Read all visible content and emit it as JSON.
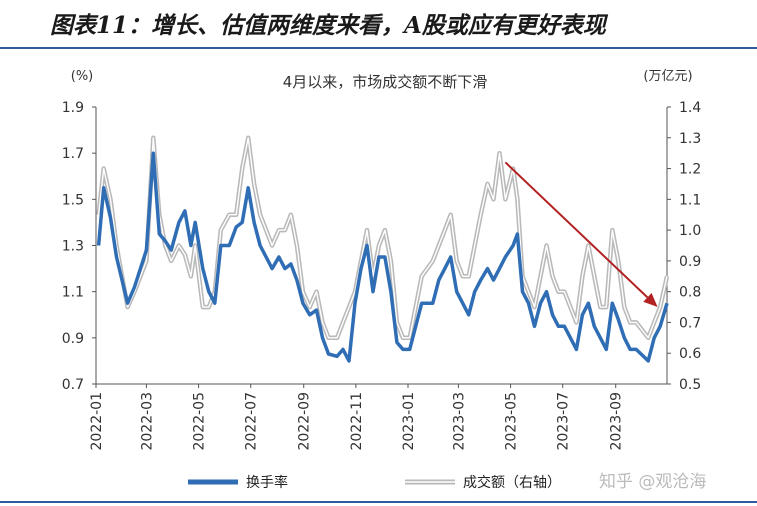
{
  "header": {
    "title": "图表11：增长、估值两维度来看，A股或应有更好表现"
  },
  "watermark": "知乎 @观沧海",
  "colors": {
    "turnover": "#2f6db5",
    "volume": "#b9b9b9",
    "arrow": "#b22222",
    "rule": "#2e5c9a"
  },
  "chart_data": {
    "type": "line",
    "annotation": "4月以来，市场成交额不断下滑",
    "left_unit": "(%)",
    "right_unit": "(万亿元)",
    "left_ylim": [
      0.7,
      1.9
    ],
    "right_ylim": [
      0.5,
      1.4
    ],
    "left_ticks": [
      "0.7",
      "0.9",
      "1.1",
      "1.3",
      "1.5",
      "1.7",
      "1.9"
    ],
    "right_ticks": [
      "0.5",
      "0.6",
      "0.7",
      "0.8",
      "0.9",
      "1.0",
      "1.1",
      "1.2",
      "1.3",
      "1.4"
    ],
    "x_range": [
      "2022-01-01",
      "2023-10-31"
    ],
    "x_ticks": [
      "2022-01",
      "2022-03",
      "2022-05",
      "2022-07",
      "2022-09",
      "2022-11",
      "2023-01",
      "2023-03",
      "2023-05",
      "2023-07",
      "2023-09"
    ],
    "series": [
      {
        "name": "换手率",
        "axis": "left",
        "points": [
          [
            "2022-01-04",
            1.3
          ],
          [
            "2022-01-10",
            1.55
          ],
          [
            "2022-01-18",
            1.42
          ],
          [
            "2022-01-25",
            1.25
          ],
          [
            "2022-02-07",
            1.05
          ],
          [
            "2022-02-15",
            1.12
          ],
          [
            "2022-02-22",
            1.2
          ],
          [
            "2022-03-01",
            1.28
          ],
          [
            "2022-03-09",
            1.7
          ],
          [
            "2022-03-16",
            1.35
          ],
          [
            "2022-03-23",
            1.32
          ],
          [
            "2022-03-30",
            1.28
          ],
          [
            "2022-04-08",
            1.4
          ],
          [
            "2022-04-15",
            1.45
          ],
          [
            "2022-04-22",
            1.3
          ],
          [
            "2022-04-27",
            1.4
          ],
          [
            "2022-05-06",
            1.2
          ],
          [
            "2022-05-13",
            1.1
          ],
          [
            "2022-05-20",
            1.05
          ],
          [
            "2022-05-27",
            1.3
          ],
          [
            "2022-06-06",
            1.3
          ],
          [
            "2022-06-14",
            1.38
          ],
          [
            "2022-06-21",
            1.4
          ],
          [
            "2022-06-28",
            1.55
          ],
          [
            "2022-07-05",
            1.4
          ],
          [
            "2022-07-12",
            1.3
          ],
          [
            "2022-07-19",
            1.25
          ],
          [
            "2022-07-26",
            1.2
          ],
          [
            "2022-08-03",
            1.25
          ],
          [
            "2022-08-10",
            1.2
          ],
          [
            "2022-08-17",
            1.22
          ],
          [
            "2022-08-24",
            1.15
          ],
          [
            "2022-08-31",
            1.05
          ],
          [
            "2022-09-08",
            1.0
          ],
          [
            "2022-09-16",
            1.02
          ],
          [
            "2022-09-23",
            0.9
          ],
          [
            "2022-09-30",
            0.83
          ],
          [
            "2022-10-10",
            0.82
          ],
          [
            "2022-10-17",
            0.85
          ],
          [
            "2022-10-24",
            0.8
          ],
          [
            "2022-10-31",
            1.05
          ],
          [
            "2022-11-07",
            1.2
          ],
          [
            "2022-11-14",
            1.3
          ],
          [
            "2022-11-21",
            1.1
          ],
          [
            "2022-11-28",
            1.25
          ],
          [
            "2022-12-05",
            1.25
          ],
          [
            "2022-12-12",
            1.1
          ],
          [
            "2022-12-19",
            0.88
          ],
          [
            "2022-12-26",
            0.85
          ],
          [
            "2023-01-03",
            0.85
          ],
          [
            "2023-01-10",
            0.95
          ],
          [
            "2023-01-17",
            1.05
          ],
          [
            "2023-01-30",
            1.05
          ],
          [
            "2023-02-06",
            1.15
          ],
          [
            "2023-02-13",
            1.2
          ],
          [
            "2023-02-20",
            1.25
          ],
          [
            "2023-02-27",
            1.1
          ],
          [
            "2023-03-06",
            1.05
          ],
          [
            "2023-03-13",
            1.0
          ],
          [
            "2023-03-20",
            1.1
          ],
          [
            "2023-03-27",
            1.15
          ],
          [
            "2023-04-04",
            1.2
          ],
          [
            "2023-04-11",
            1.15
          ],
          [
            "2023-04-18",
            1.2
          ],
          [
            "2023-04-25",
            1.25
          ],
          [
            "2023-05-04",
            1.3
          ],
          [
            "2023-05-09",
            1.35
          ],
          [
            "2023-05-15",
            1.1
          ],
          [
            "2023-05-22",
            1.05
          ],
          [
            "2023-05-29",
            0.95
          ],
          [
            "2023-06-05",
            1.05
          ],
          [
            "2023-06-12",
            1.1
          ],
          [
            "2023-06-19",
            1.0
          ],
          [
            "2023-06-26",
            0.95
          ],
          [
            "2023-07-03",
            0.95
          ],
          [
            "2023-07-10",
            0.9
          ],
          [
            "2023-07-17",
            0.85
          ],
          [
            "2023-07-24",
            1.0
          ],
          [
            "2023-07-31",
            1.05
          ],
          [
            "2023-08-07",
            0.95
          ],
          [
            "2023-08-14",
            0.9
          ],
          [
            "2023-08-21",
            0.85
          ],
          [
            "2023-08-28",
            1.05
          ],
          [
            "2023-09-04",
            0.98
          ],
          [
            "2023-09-11",
            0.9
          ],
          [
            "2023-09-18",
            0.85
          ],
          [
            "2023-09-25",
            0.85
          ],
          [
            "2023-10-09",
            0.8
          ],
          [
            "2023-10-16",
            0.9
          ],
          [
            "2023-10-23",
            0.95
          ],
          [
            "2023-10-31",
            1.05
          ]
        ]
      },
      {
        "name": "成交额（右轴）",
        "axis": "right",
        "points": [
          [
            "2022-01-04",
            1.05
          ],
          [
            "2022-01-10",
            1.2
          ],
          [
            "2022-01-18",
            1.1
          ],
          [
            "2022-01-25",
            0.95
          ],
          [
            "2022-02-07",
            0.75
          ],
          [
            "2022-02-15",
            0.8
          ],
          [
            "2022-02-22",
            0.85
          ],
          [
            "2022-03-01",
            0.9
          ],
          [
            "2022-03-09",
            1.3
          ],
          [
            "2022-03-16",
            1.05
          ],
          [
            "2022-03-23",
            0.95
          ],
          [
            "2022-03-30",
            0.9
          ],
          [
            "2022-04-08",
            0.95
          ],
          [
            "2022-04-15",
            0.92
          ],
          [
            "2022-04-22",
            0.85
          ],
          [
            "2022-04-27",
            0.95
          ],
          [
            "2022-05-06",
            0.75
          ],
          [
            "2022-05-13",
            0.75
          ],
          [
            "2022-05-20",
            0.8
          ],
          [
            "2022-05-27",
            1.0
          ],
          [
            "2022-06-06",
            1.05
          ],
          [
            "2022-06-14",
            1.05
          ],
          [
            "2022-06-21",
            1.2
          ],
          [
            "2022-06-28",
            1.3
          ],
          [
            "2022-07-05",
            1.15
          ],
          [
            "2022-07-12",
            1.05
          ],
          [
            "2022-07-19",
            1.0
          ],
          [
            "2022-07-26",
            0.95
          ],
          [
            "2022-08-03",
            1.0
          ],
          [
            "2022-08-10",
            1.0
          ],
          [
            "2022-08-17",
            1.05
          ],
          [
            "2022-08-24",
            0.95
          ],
          [
            "2022-08-31",
            0.8
          ],
          [
            "2022-09-08",
            0.75
          ],
          [
            "2022-09-16",
            0.8
          ],
          [
            "2022-09-23",
            0.7
          ],
          [
            "2022-09-30",
            0.65
          ],
          [
            "2022-10-10",
            0.65
          ],
          [
            "2022-10-17",
            0.7
          ],
          [
            "2022-10-24",
            0.75
          ],
          [
            "2022-10-31",
            0.8
          ],
          [
            "2022-11-07",
            0.9
          ],
          [
            "2022-11-14",
            1.0
          ],
          [
            "2022-11-21",
            0.85
          ],
          [
            "2022-11-28",
            0.95
          ],
          [
            "2022-12-05",
            1.0
          ],
          [
            "2022-12-12",
            0.9
          ],
          [
            "2022-12-19",
            0.7
          ],
          [
            "2022-12-26",
            0.65
          ],
          [
            "2023-01-03",
            0.65
          ],
          [
            "2023-01-10",
            0.75
          ],
          [
            "2023-01-17",
            0.85
          ],
          [
            "2023-01-30",
            0.9
          ],
          [
            "2023-02-06",
            0.95
          ],
          [
            "2023-02-13",
            1.0
          ],
          [
            "2023-02-20",
            1.05
          ],
          [
            "2023-02-27",
            0.9
          ],
          [
            "2023-03-06",
            0.85
          ],
          [
            "2023-03-13",
            0.85
          ],
          [
            "2023-03-20",
            0.95
          ],
          [
            "2023-03-27",
            1.05
          ],
          [
            "2023-04-04",
            1.15
          ],
          [
            "2023-04-11",
            1.1
          ],
          [
            "2023-04-18",
            1.25
          ],
          [
            "2023-04-25",
            1.1
          ],
          [
            "2023-05-04",
            1.2
          ],
          [
            "2023-05-09",
            1.1
          ],
          [
            "2023-05-15",
            0.85
          ],
          [
            "2023-05-22",
            0.8
          ],
          [
            "2023-05-29",
            0.75
          ],
          [
            "2023-06-05",
            0.85
          ],
          [
            "2023-06-12",
            0.95
          ],
          [
            "2023-06-19",
            0.85
          ],
          [
            "2023-06-26",
            0.8
          ],
          [
            "2023-07-03",
            0.8
          ],
          [
            "2023-07-10",
            0.75
          ],
          [
            "2023-07-17",
            0.7
          ],
          [
            "2023-07-24",
            0.85
          ],
          [
            "2023-07-31",
            0.95
          ],
          [
            "2023-08-07",
            0.85
          ],
          [
            "2023-08-14",
            0.75
          ],
          [
            "2023-08-21",
            0.75
          ],
          [
            "2023-08-28",
            1.0
          ],
          [
            "2023-09-04",
            0.9
          ],
          [
            "2023-09-11",
            0.75
          ],
          [
            "2023-09-18",
            0.7
          ],
          [
            "2023-09-25",
            0.7
          ],
          [
            "2023-10-09",
            0.65
          ],
          [
            "2023-10-16",
            0.7
          ],
          [
            "2023-10-23",
            0.75
          ],
          [
            "2023-10-31",
            0.85
          ]
        ]
      }
    ],
    "arrow": {
      "from": [
        "2023-04-25",
        1.22
      ],
      "to": [
        "2023-10-20",
        0.75
      ],
      "axis": "right"
    },
    "grid": false,
    "legend": "bottom"
  }
}
